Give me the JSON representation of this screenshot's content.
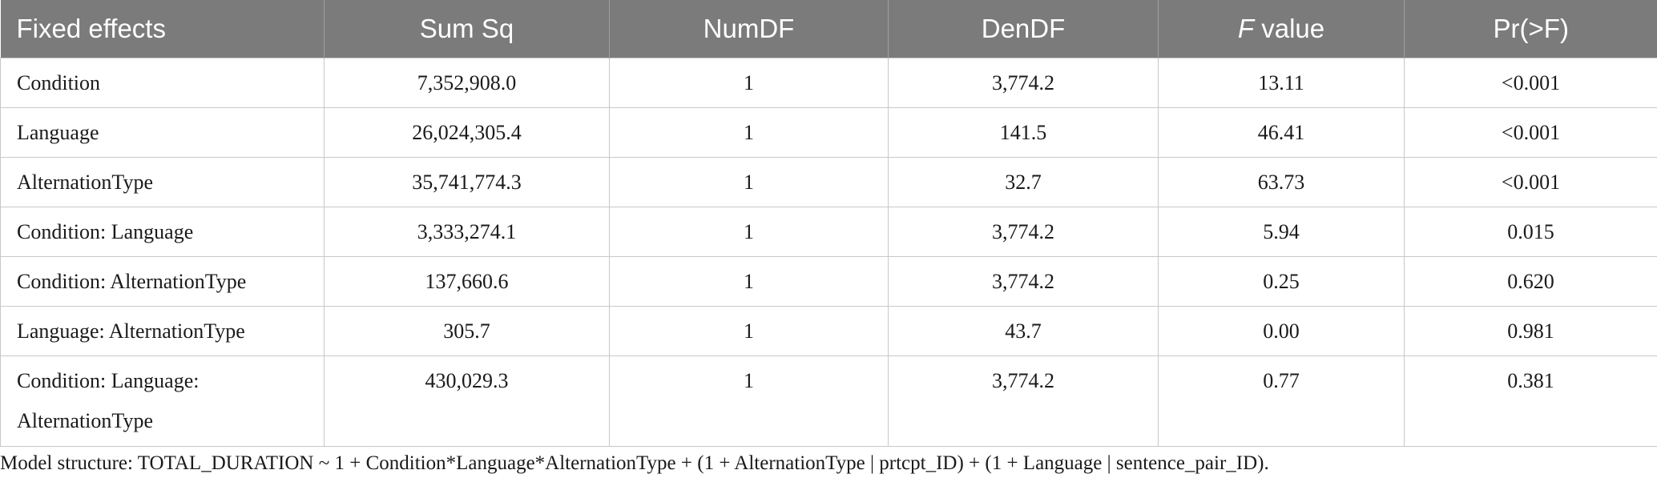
{
  "table": {
    "headers": {
      "fixed_effects": "Fixed effects",
      "sum_sq": "Sum Sq",
      "numdf": "NumDF",
      "dendf": "DenDF",
      "f_italic": "F",
      "f_rest": " value",
      "pr": "Pr(>F)"
    },
    "rows": [
      {
        "effect": "Condition",
        "sum_sq": "7,352,908.0",
        "numdf": "1",
        "dendf": "3,774.2",
        "f": "13.11",
        "pr": "<0.001"
      },
      {
        "effect": "Language",
        "sum_sq": "26,024,305.4",
        "numdf": "1",
        "dendf": "141.5",
        "f": "46.41",
        "pr": "<0.001"
      },
      {
        "effect": "AlternationType",
        "sum_sq": "35,741,774.3",
        "numdf": "1",
        "dendf": "32.7",
        "f": "63.73",
        "pr": "<0.001"
      },
      {
        "effect": "Condition: Language",
        "sum_sq": "3,333,274.1",
        "numdf": "1",
        "dendf": "3,774.2",
        "f": "5.94",
        "pr": "0.015"
      },
      {
        "effect": "Condition: AlternationType",
        "sum_sq": "137,660.6",
        "numdf": "1",
        "dendf": "3,774.2",
        "f": "0.25",
        "pr": "0.620"
      },
      {
        "effect": "Language: AlternationType",
        "sum_sq": "305.7",
        "numdf": "1",
        "dendf": "43.7",
        "f": "0.00",
        "pr": "0.981"
      },
      {
        "effect_line1": "Condition: Language:",
        "effect_line2": "AlternationType",
        "sum_sq": "430,029.3",
        "numdf": "1",
        "dendf": "3,774.2",
        "f": "0.77",
        "pr": "0.381"
      }
    ]
  },
  "footnote": "Model structure: TOTAL_DURATION ~ 1 + Condition*Language*AlternationType + (1 + AlternationType | prtcpt_ID) + (1 + Language | sentence_pair_ID)."
}
